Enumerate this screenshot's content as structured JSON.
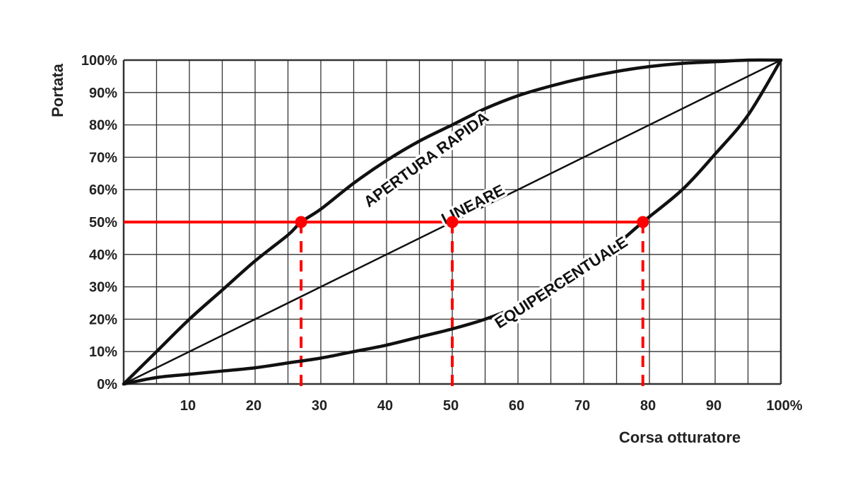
{
  "chart_data": {
    "type": "line",
    "xlabel": "Corsa otturatore",
    "ylabel": "Portata",
    "xlim": [
      0,
      100
    ],
    "ylim": [
      0,
      100
    ],
    "grid": true,
    "x_tick_labels": [
      "10",
      "20",
      "30",
      "40",
      "50",
      "60",
      "70",
      "80",
      "90",
      "100%"
    ],
    "x_tick_values": [
      10,
      20,
      30,
      40,
      50,
      60,
      70,
      80,
      90,
      100
    ],
    "y_tick_labels": [
      "0%",
      "10%",
      "20%",
      "30%",
      "40%",
      "50%",
      "60%",
      "70%",
      "80%",
      "90%",
      "100%"
    ],
    "y_tick_values": [
      0,
      10,
      20,
      30,
      40,
      50,
      60,
      70,
      80,
      90,
      100
    ],
    "series": [
      {
        "name": "APERTURA RAPIDA",
        "x": [
          0,
          5,
          10,
          15,
          20,
          25,
          27,
          30,
          35,
          40,
          45,
          50,
          55,
          60,
          65,
          70,
          75,
          80,
          85,
          90,
          95,
          100
        ],
        "y": [
          0,
          10,
          20,
          29,
          38,
          46,
          50,
          54,
          62,
          69,
          75,
          80,
          85,
          89,
          92,
          94.5,
          96.5,
          98,
          99,
          99.5,
          100,
          100
        ],
        "color": "#111111"
      },
      {
        "name": "LINEARE",
        "x": [
          0,
          100
        ],
        "y": [
          0,
          100
        ],
        "color": "#111111"
      },
      {
        "name": "EQUIPERCENTUALE",
        "x": [
          0,
          5,
          10,
          15,
          20,
          25,
          30,
          35,
          40,
          45,
          50,
          55,
          60,
          65,
          70,
          75,
          79,
          85,
          90,
          95,
          100
        ],
        "y": [
          0,
          2,
          3,
          4,
          5,
          6.5,
          8,
          10,
          12,
          14.5,
          17,
          20,
          24,
          29,
          35,
          43,
          50,
          60,
          71,
          83,
          100
        ],
        "color": "#111111"
      }
    ],
    "reference": {
      "color": "#ff0000",
      "y": 50,
      "points": [
        {
          "x": 27,
          "y": 50
        },
        {
          "x": 50,
          "y": 50
        },
        {
          "x": 79,
          "y": 50
        }
      ]
    },
    "labels": [
      {
        "text": "APERTURA RAPIDA",
        "x": 46.5,
        "y": 68,
        "angle": -36
      },
      {
        "text": "LINEARE",
        "x": 53.5,
        "y": 54,
        "angle": -27
      },
      {
        "text": "EQUIPERCENTUALE",
        "x": 67,
        "y": 30,
        "angle": -33
      }
    ]
  }
}
